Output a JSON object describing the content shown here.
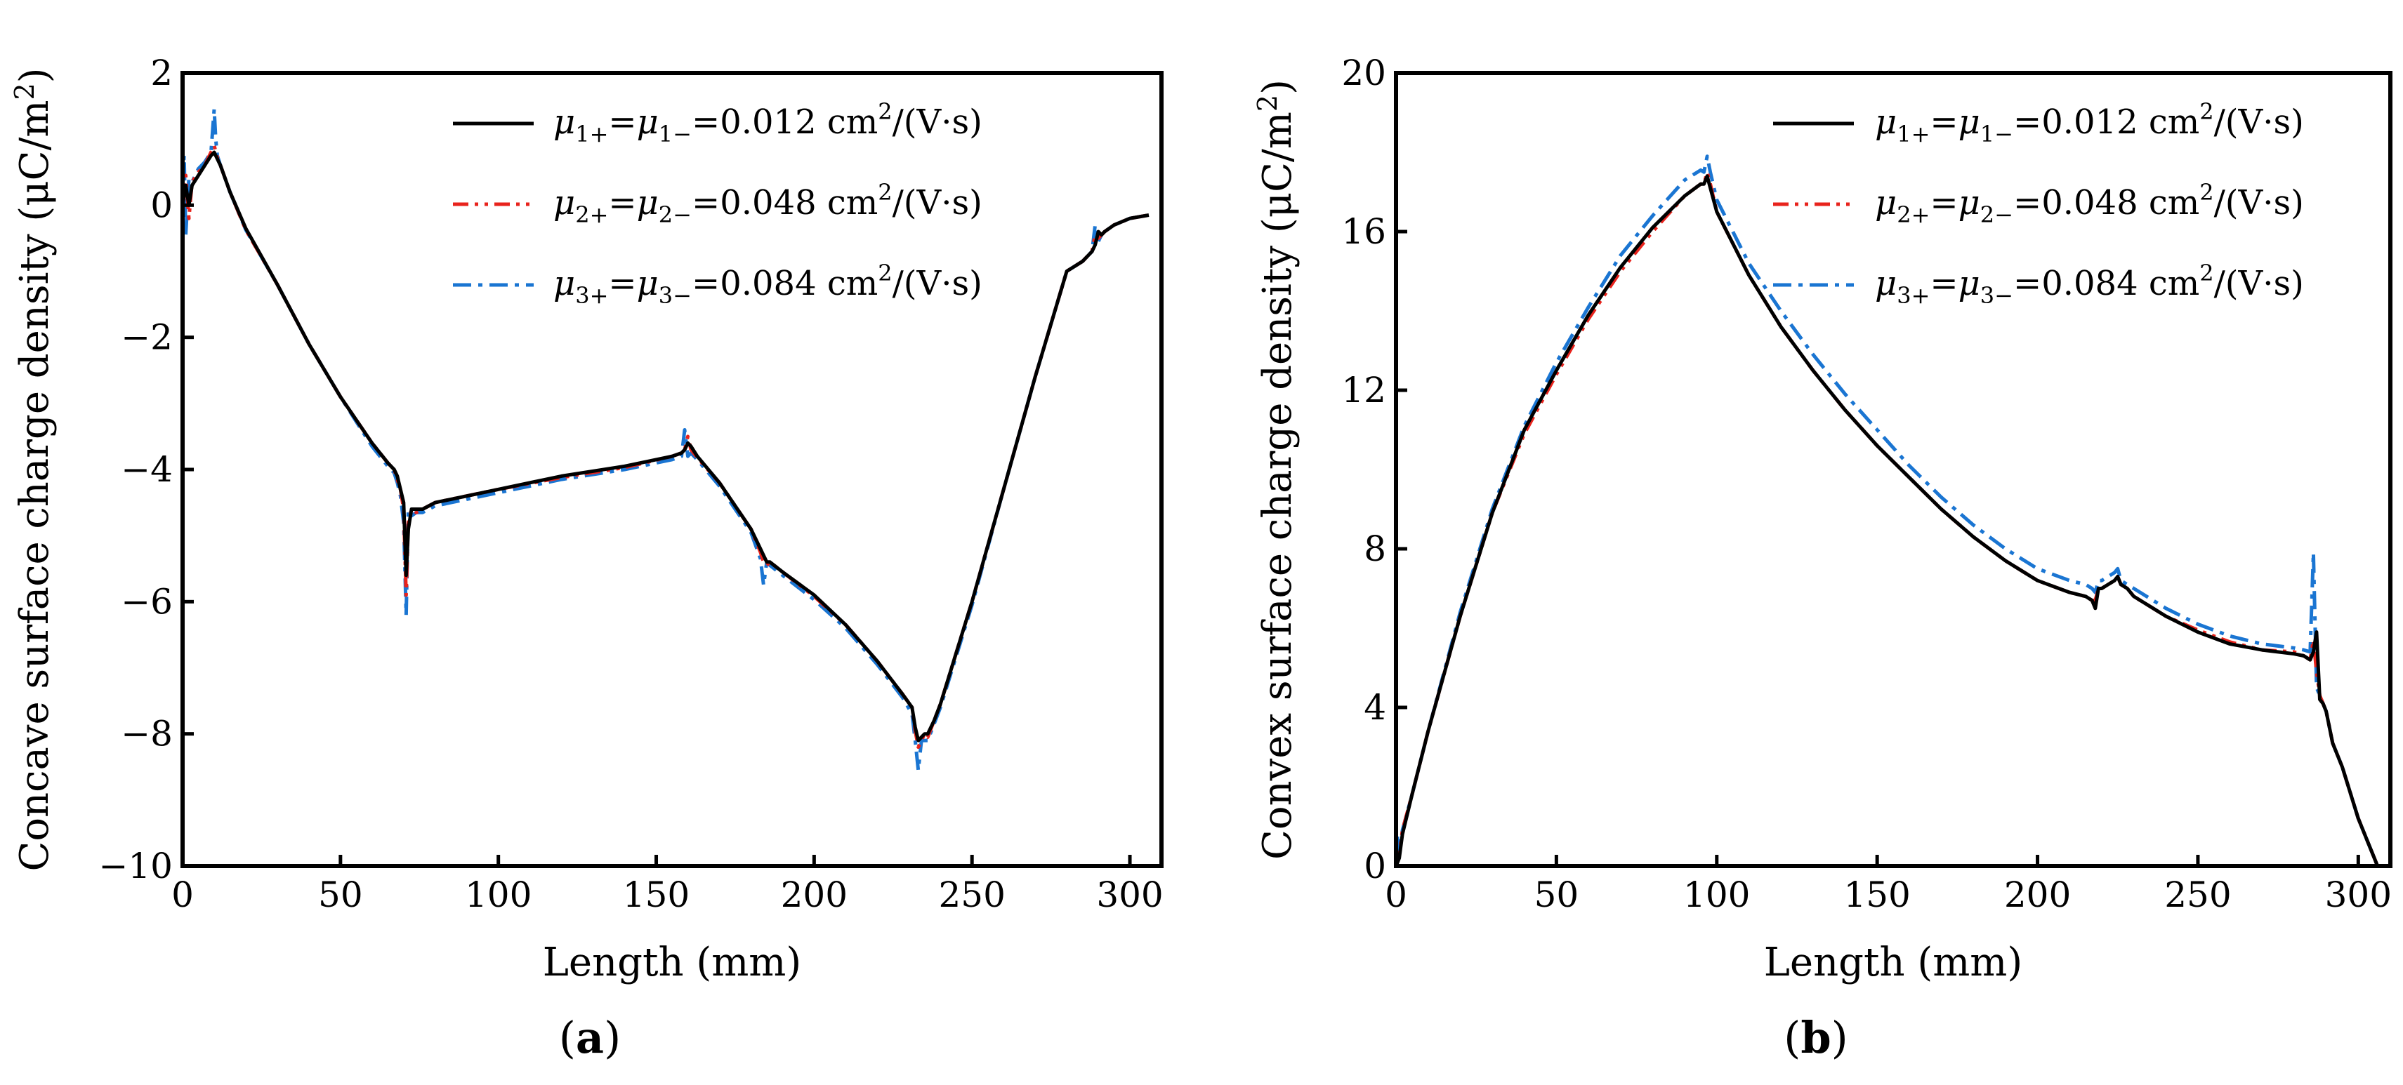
{
  "figure": {
    "panels": [
      {
        "label_open": "(",
        "label_letter": "a",
        "label_close": ")"
      },
      {
        "label_open": "(",
        "label_letter": "b",
        "label_close": ")"
      }
    ]
  },
  "chart_data": [
    {
      "type": "line",
      "xlabel": "Length (mm)",
      "ylabel": "Concave surface charge density (μC/m²)",
      "ylabel_main": "Concave surface charge density (μC/m",
      "ylabel_sup": "2",
      "ylabel_end": ")",
      "xlim": [
        0,
        310
      ],
      "ylim": [
        -10,
        2
      ],
      "xticks": [
        0,
        50,
        100,
        150,
        200,
        250,
        300
      ],
      "yticks": [
        -10,
        -8,
        -6,
        -4,
        -2,
        0,
        2
      ],
      "ytick_labels": [
        "−10",
        "−8",
        "−6",
        "−4",
        "−2",
        "0",
        "2"
      ],
      "grid": false,
      "legend_position": "top-right",
      "series": [
        {
          "name": "μ1+=μ1−=0.012 cm²/(V·s)",
          "legend": {
            "sym": "μ",
            "sub1": "1+",
            "mid": "=",
            "sub2": "1−",
            "value": "=0.012 cm",
            "sup": "2",
            "unit": "/(V·s)"
          },
          "color": "#000000",
          "dash": "solid",
          "x": [
            0,
            1,
            2,
            3,
            5,
            7,
            9,
            10,
            11,
            12,
            15,
            20,
            30,
            40,
            50,
            60,
            65,
            67,
            68,
            69,
            70,
            70.8,
            71.5,
            72.5,
            74,
            76,
            80,
            100,
            120,
            140,
            155,
            158,
            159,
            160,
            161,
            163,
            170,
            180,
            183,
            184,
            185,
            186,
            190,
            200,
            210,
            220,
            228,
            231,
            232,
            233,
            234,
            235,
            236,
            238,
            240,
            250,
            260,
            270,
            280,
            285,
            288,
            289,
            290,
            291,
            292,
            295,
            300,
            306
          ],
          "y": [
            0.0,
            0.3,
            0.0,
            0.3,
            0.45,
            0.6,
            0.75,
            0.8,
            0.7,
            0.6,
            0.2,
            -0.35,
            -1.2,
            -2.1,
            -2.9,
            -3.6,
            -3.9,
            -4.0,
            -4.1,
            -4.3,
            -4.5,
            -5.6,
            -4.9,
            -4.6,
            -4.6,
            -4.6,
            -4.5,
            -4.3,
            -4.1,
            -3.95,
            -3.8,
            -3.75,
            -3.7,
            -3.6,
            -3.65,
            -3.8,
            -4.2,
            -4.9,
            -5.2,
            -5.3,
            -5.4,
            -5.4,
            -5.55,
            -5.9,
            -6.35,
            -6.9,
            -7.4,
            -7.6,
            -7.9,
            -8.1,
            -8.05,
            -8.0,
            -8.0,
            -7.8,
            -7.55,
            -6.0,
            -4.3,
            -2.6,
            -1.0,
            -0.85,
            -0.7,
            -0.6,
            -0.4,
            -0.45,
            -0.4,
            -0.3,
            -0.2,
            -0.15
          ]
        },
        {
          "name": "μ2+=μ2−=0.048 cm²/(V·s)",
          "legend": {
            "sym": "μ",
            "sub1": "2+",
            "mid": "=",
            "sub2": "2−",
            "value": "=0.048 cm",
            "sup": "2",
            "unit": "/(V·s)"
          },
          "color": "#e8231c",
          "dash": "dashdotdot",
          "x": [
            0,
            1,
            2,
            3,
            5,
            7,
            9,
            10,
            11,
            12,
            15,
            20,
            30,
            40,
            50,
            60,
            65,
            67,
            68,
            69,
            70,
            70.8,
            71.5,
            72.5,
            74,
            76,
            80,
            100,
            120,
            140,
            155,
            158,
            159,
            160,
            161,
            163,
            170,
            180,
            183,
            184,
            185,
            186,
            190,
            200,
            210,
            220,
            228,
            231,
            232,
            233,
            234,
            235,
            236,
            238,
            240,
            250,
            260,
            270,
            280,
            285,
            288,
            289,
            290,
            291,
            292,
            295,
            300,
            306
          ],
          "y": [
            0.1,
            0.45,
            -0.2,
            0.35,
            0.5,
            0.6,
            0.8,
            0.9,
            0.72,
            0.6,
            0.2,
            -0.37,
            -1.2,
            -2.1,
            -2.9,
            -3.6,
            -3.9,
            -4.0,
            -4.15,
            -4.3,
            -4.6,
            -5.9,
            -4.8,
            -4.6,
            -4.65,
            -4.6,
            -4.5,
            -4.3,
            -4.12,
            -3.97,
            -3.8,
            -3.75,
            -3.7,
            -3.5,
            -3.7,
            -3.82,
            -4.2,
            -4.9,
            -5.25,
            -5.4,
            -5.45,
            -5.4,
            -5.55,
            -5.92,
            -6.35,
            -6.9,
            -7.4,
            -7.6,
            -7.95,
            -8.2,
            -8.1,
            -8.0,
            -8.05,
            -7.8,
            -7.55,
            -6.0,
            -4.3,
            -2.6,
            -1.0,
            -0.85,
            -0.7,
            -0.45,
            -0.5,
            -0.45,
            -0.4,
            -0.3,
            -0.2,
            -0.15
          ]
        },
        {
          "name": "μ3+=μ3−=0.084 cm²/(V·s)",
          "legend": {
            "sym": "μ",
            "sub1": "3+",
            "mid": "=",
            "sub2": "3−",
            "value": "=0.084 cm",
            "sup": "2",
            "unit": "/(V·s)"
          },
          "color": "#1a75d2",
          "dash": "dashdot",
          "x": [
            0,
            0.5,
            1,
            2,
            3,
            5,
            7,
            9,
            10,
            10.5,
            11,
            12,
            15,
            20,
            30,
            40,
            50,
            60,
            65,
            67,
            68,
            69,
            70,
            70.8,
            71.5,
            72.5,
            74,
            76,
            80,
            100,
            120,
            140,
            155,
            158,
            159,
            160,
            161,
            163,
            170,
            180,
            183,
            184,
            185,
            186,
            190,
            200,
            210,
            220,
            228,
            231,
            232,
            233,
            234,
            235,
            236,
            238,
            240,
            250,
            260,
            270,
            280,
            285,
            288,
            289,
            290,
            291,
            292,
            295,
            300,
            306
          ],
          "y": [
            0.3,
            0.75,
            -0.45,
            0.4,
            0.35,
            0.55,
            0.65,
            0.8,
            1.45,
            1.0,
            0.75,
            0.6,
            0.2,
            -0.37,
            -1.2,
            -2.1,
            -2.9,
            -3.65,
            -3.95,
            -4.05,
            -4.2,
            -4.4,
            -4.8,
            -6.2,
            -4.6,
            -4.7,
            -4.65,
            -4.65,
            -4.55,
            -4.35,
            -4.15,
            -4.0,
            -3.85,
            -3.8,
            -3.4,
            -3.8,
            -3.75,
            -3.85,
            -4.25,
            -4.95,
            -5.35,
            -5.75,
            -5.4,
            -5.45,
            -5.6,
            -5.97,
            -6.4,
            -6.95,
            -7.45,
            -7.7,
            -8.1,
            -8.55,
            -8.1,
            -8.1,
            -8.1,
            -7.85,
            -7.6,
            -6.05,
            -4.3,
            -2.6,
            -1.0,
            -0.85,
            -0.7,
            -0.3,
            -0.55,
            -0.45,
            -0.4,
            -0.3,
            -0.2,
            -0.15
          ]
        }
      ]
    },
    {
      "type": "line",
      "xlabel": "Length (mm)",
      "ylabel": "Convex surface charge density (μC/m²)",
      "ylabel_main": "Convex surface charge density (μC/m",
      "ylabel_sup": "2",
      "ylabel_end": ")",
      "xlim": [
        0,
        310
      ],
      "ylim": [
        0,
        20
      ],
      "xticks": [
        0,
        50,
        100,
        150,
        200,
        250,
        300
      ],
      "yticks": [
        0,
        4,
        8,
        12,
        16,
        20
      ],
      "ytick_labels": [
        "0",
        "4",
        "8",
        "12",
        "16",
        "20"
      ],
      "grid": false,
      "legend_position": "top-right",
      "series": [
        {
          "name": "μ1+=μ1−=0.012 cm²/(V·s)",
          "legend": {
            "sym": "μ",
            "sub1": "1+",
            "mid": "=",
            "sub2": "1−",
            "value": "=0.012 cm",
            "sup": "2",
            "unit": "/(V·s)"
          },
          "color": "#000000",
          "dash": "solid",
          "x": [
            0,
            1,
            2,
            5,
            10,
            20,
            30,
            40,
            50,
            60,
            70,
            80,
            90,
            95,
            96,
            97,
            98,
            100,
            110,
            120,
            130,
            140,
            150,
            160,
            170,
            180,
            190,
            200,
            210,
            215,
            217,
            218,
            219,
            220,
            222,
            224,
            225,
            226,
            228,
            230,
            240,
            250,
            260,
            270,
            280,
            283,
            285,
            286,
            287,
            288,
            289,
            290,
            292,
            295,
            300,
            303,
            305,
            306,
            307
          ],
          "y": [
            0.0,
            0.2,
            0.8,
            1.8,
            3.4,
            6.3,
            8.9,
            11.0,
            12.5,
            13.9,
            15.1,
            16.1,
            16.9,
            17.2,
            17.2,
            17.4,
            17.1,
            16.5,
            14.9,
            13.6,
            12.5,
            11.5,
            10.6,
            9.8,
            9.0,
            8.3,
            7.7,
            7.2,
            6.9,
            6.8,
            6.7,
            6.5,
            7.0,
            7.0,
            7.1,
            7.2,
            7.3,
            7.1,
            7.0,
            6.8,
            6.3,
            5.9,
            5.6,
            5.45,
            5.35,
            5.3,
            5.2,
            5.4,
            5.9,
            4.2,
            4.1,
            3.9,
            3.1,
            2.5,
            1.2,
            0.6,
            0.2,
            0.0,
            0.0
          ]
        },
        {
          "name": "μ2+=μ2−=0.048 cm²/(V·s)",
          "legend": {
            "sym": "μ",
            "sub1": "2+",
            "mid": "=",
            "sub2": "2−",
            "value": "=0.048 cm",
            "sup": "2",
            "unit": "/(V·s)"
          },
          "color": "#e8231c",
          "dash": "dashdotdot",
          "x": [
            0,
            1,
            2,
            5,
            10,
            20,
            30,
            40,
            50,
            60,
            70,
            80,
            90,
            95,
            96,
            97,
            98,
            100,
            110,
            120,
            130,
            140,
            150,
            160,
            170,
            180,
            190,
            200,
            210,
            215,
            217,
            218,
            219,
            220,
            222,
            224,
            225,
            226,
            228,
            230,
            240,
            250,
            260,
            270,
            280,
            283,
            285,
            286,
            287,
            288,
            289,
            290,
            292,
            295,
            300,
            303,
            305,
            306,
            307
          ],
          "y": [
            0.0,
            0.3,
            0.9,
            1.8,
            3.4,
            6.3,
            8.9,
            10.9,
            12.4,
            13.8,
            15.0,
            16.0,
            16.9,
            17.2,
            17.2,
            17.5,
            17.2,
            16.5,
            14.9,
            13.6,
            12.5,
            11.5,
            10.6,
            9.8,
            9.0,
            8.3,
            7.7,
            7.2,
            6.9,
            6.8,
            6.7,
            6.7,
            7.0,
            7.0,
            7.1,
            7.2,
            7.3,
            7.1,
            7.0,
            6.8,
            6.3,
            5.95,
            5.65,
            5.45,
            5.4,
            5.3,
            5.2,
            5.7,
            4.9,
            4.3,
            4.1,
            3.9,
            3.1,
            2.5,
            1.2,
            0.6,
            0.2,
            0.0,
            0.0
          ]
        },
        {
          "name": "μ3+=μ3−=0.084 cm²/(V·s)",
          "legend": {
            "sym": "μ",
            "sub1": "3+",
            "mid": "=",
            "sub2": "3−",
            "value": "=0.084 cm",
            "sup": "2",
            "unit": "/(V·s)"
          },
          "color": "#1a75d2",
          "dash": "dashdot",
          "x": [
            0,
            0.5,
            1,
            2,
            5,
            10,
            20,
            30,
            40,
            50,
            60,
            70,
            80,
            90,
            95,
            96,
            97,
            98,
            100,
            110,
            120,
            130,
            140,
            150,
            160,
            170,
            180,
            190,
            200,
            210,
            215,
            217,
            218,
            219,
            220,
            222,
            224,
            225,
            226,
            228,
            230,
            240,
            250,
            260,
            270,
            280,
            283,
            285,
            286,
            287,
            288,
            289,
            290,
            292,
            295,
            300,
            303,
            305,
            306,
            307
          ],
          "y": [
            0.0,
            0.8,
            0.3,
            0.9,
            1.8,
            3.4,
            6.4,
            9.0,
            11.1,
            12.7,
            14.1,
            15.4,
            16.4,
            17.3,
            17.55,
            17.5,
            17.9,
            17.5,
            16.8,
            15.2,
            14.0,
            12.9,
            11.9,
            11.0,
            10.1,
            9.3,
            8.6,
            8.0,
            7.5,
            7.2,
            7.1,
            7.0,
            6.9,
            7.2,
            7.2,
            7.3,
            7.4,
            7.5,
            7.2,
            7.1,
            7.0,
            6.5,
            6.1,
            5.8,
            5.6,
            5.5,
            5.45,
            5.4,
            7.9,
            4.5,
            4.3,
            4.1,
            3.9,
            3.1,
            2.5,
            1.2,
            0.6,
            0.2,
            0.0,
            0.0
          ]
        }
      ]
    }
  ]
}
